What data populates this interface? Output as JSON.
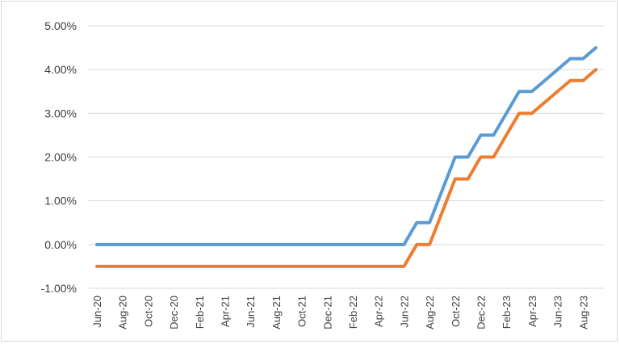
{
  "chart_data": {
    "type": "line",
    "title": "",
    "xlabel": "",
    "ylabel": "",
    "ylim": [
      -0.01,
      0.05
    ],
    "y_ticks": [
      -0.01,
      0,
      0.01,
      0.02,
      0.03,
      0.04,
      0.05
    ],
    "y_tick_labels": [
      "-1.00%",
      "0.00%",
      "1.00%",
      "2.00%",
      "3.00%",
      "4.00%",
      "5.00%"
    ],
    "x_tick_labels": [
      "Jun-20",
      "Aug-20",
      "Oct-20",
      "Dec-20",
      "Feb-21",
      "Apr-21",
      "Jun-21",
      "Aug-21",
      "Oct-21",
      "Dec-21",
      "Feb-22",
      "Apr-22",
      "Jun-22",
      "Aug-22",
      "Oct-22",
      "Dec-22",
      "Feb-23",
      "Apr-23",
      "Jun-23",
      "Aug-23"
    ],
    "x": [
      "Jun-20",
      "Jul-20",
      "Aug-20",
      "Sep-20",
      "Oct-20",
      "Nov-20",
      "Dec-20",
      "Jan-21",
      "Feb-21",
      "Mar-21",
      "Apr-21",
      "May-21",
      "Jun-21",
      "Jul-21",
      "Aug-21",
      "Sep-21",
      "Oct-21",
      "Nov-21",
      "Dec-21",
      "Jan-22",
      "Feb-22",
      "Mar-22",
      "Apr-22",
      "May-22",
      "Jun-22",
      "Jul-22",
      "Aug-22",
      "Sep-22",
      "Oct-22",
      "Nov-22",
      "Dec-22",
      "Jan-23",
      "Feb-23",
      "Mar-23",
      "Apr-23",
      "May-23",
      "Jun-23",
      "Jul-23",
      "Aug-23",
      "Sep-23"
    ],
    "grid": true,
    "legend": "none",
    "series": [
      {
        "color": "#5b9bd5",
        "values": [
          0,
          0,
          0,
          0,
          0,
          0,
          0,
          0,
          0,
          0,
          0,
          0,
          0,
          0,
          0,
          0,
          0,
          0,
          0,
          0,
          0,
          0,
          0,
          0,
          0,
          0.005,
          0.005,
          0.0125,
          0.02,
          0.02,
          0.025,
          0.025,
          0.03,
          0.035,
          0.035,
          0.0375,
          0.04,
          0.0425,
          0.0425,
          0.045
        ]
      },
      {
        "color": "#ed7d31",
        "values": [
          -0.005,
          -0.005,
          -0.005,
          -0.005,
          -0.005,
          -0.005,
          -0.005,
          -0.005,
          -0.005,
          -0.005,
          -0.005,
          -0.005,
          -0.005,
          -0.005,
          -0.005,
          -0.005,
          -0.005,
          -0.005,
          -0.005,
          -0.005,
          -0.005,
          -0.005,
          -0.005,
          -0.005,
          -0.005,
          0,
          0,
          0.0075,
          0.015,
          0.015,
          0.02,
          0.02,
          0.025,
          0.03,
          0.03,
          0.0325,
          0.035,
          0.0375,
          0.0375,
          0.04
        ]
      }
    ]
  }
}
